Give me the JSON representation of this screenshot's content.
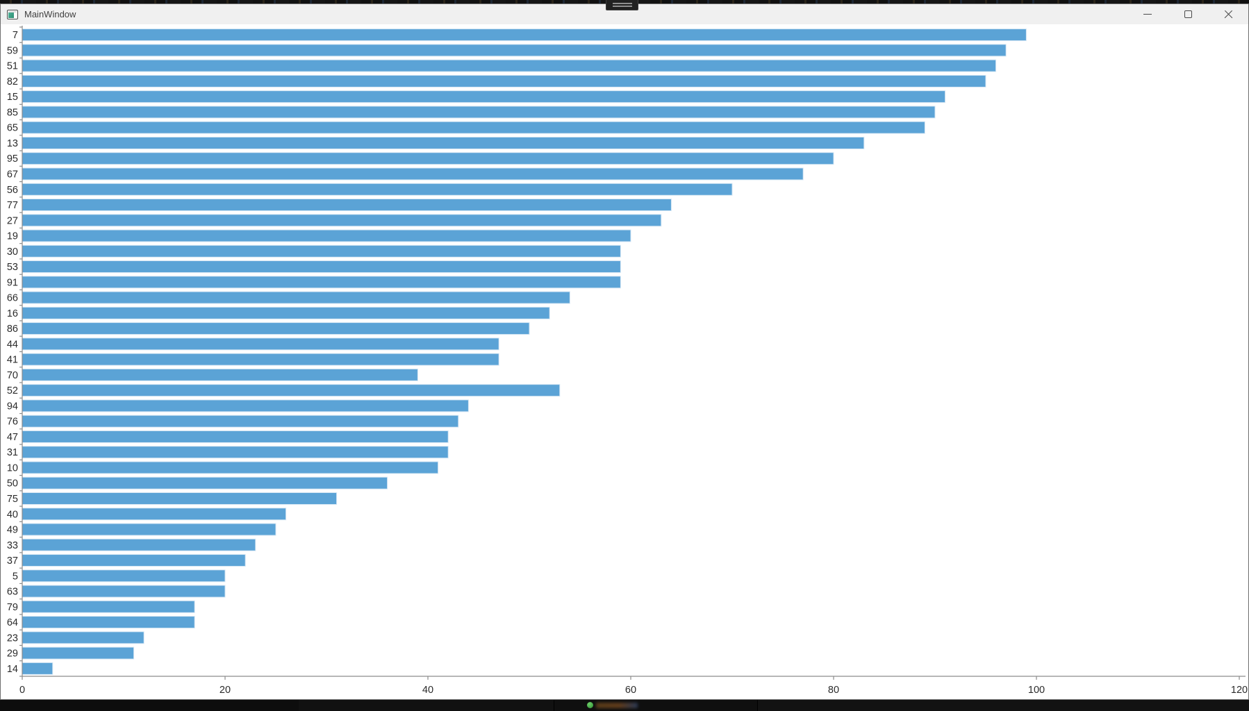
{
  "window": {
    "title": "MainWindow",
    "controls": {
      "minimize": "Minimize",
      "maximize": "Maximize",
      "close": "Close"
    }
  },
  "chart_data": {
    "type": "bar",
    "orientation": "horizontal",
    "title": "",
    "xlabel": "",
    "ylabel": "",
    "xlim": [
      0,
      120
    ],
    "x_ticks": [
      0,
      20,
      40,
      60,
      80,
      100,
      120
    ],
    "grid": false,
    "legend": null,
    "bar_color": "#5ba3d6",
    "bar_edge_color": "#d6e7f4",
    "axis_color": "#8c8c8c",
    "tick_label_color": "#2b2b2b",
    "categories": [
      "7",
      "59",
      "51",
      "82",
      "15",
      "85",
      "65",
      "13",
      "95",
      "67",
      "56",
      "77",
      "27",
      "19",
      "30",
      "53",
      "91",
      "66",
      "16",
      "86",
      "44",
      "41",
      "70",
      "52",
      "94",
      "76",
      "47",
      "31",
      "10",
      "50",
      "75",
      "40",
      "49",
      "33",
      "37",
      "5",
      "63",
      "79",
      "64",
      "23",
      "29",
      "14"
    ],
    "values": [
      99,
      97,
      96,
      95,
      91,
      90,
      89,
      83,
      80,
      77,
      70,
      64,
      63,
      60,
      59,
      59,
      59,
      54,
      52,
      50,
      47,
      47,
      39,
      53,
      44,
      43,
      42,
      42,
      41,
      36,
      31,
      26,
      25,
      23,
      22,
      20,
      20,
      17,
      17,
      12,
      11,
      3
    ]
  },
  "colors": {
    "titlebar_bg": "#f0f0f0",
    "title_text": "#3f3f3f",
    "plot_bg": "#ffffff",
    "window_border": "#6f6f6f",
    "desktop_strip": "#111111",
    "taskbar_icon_green": "#3fae49"
  }
}
